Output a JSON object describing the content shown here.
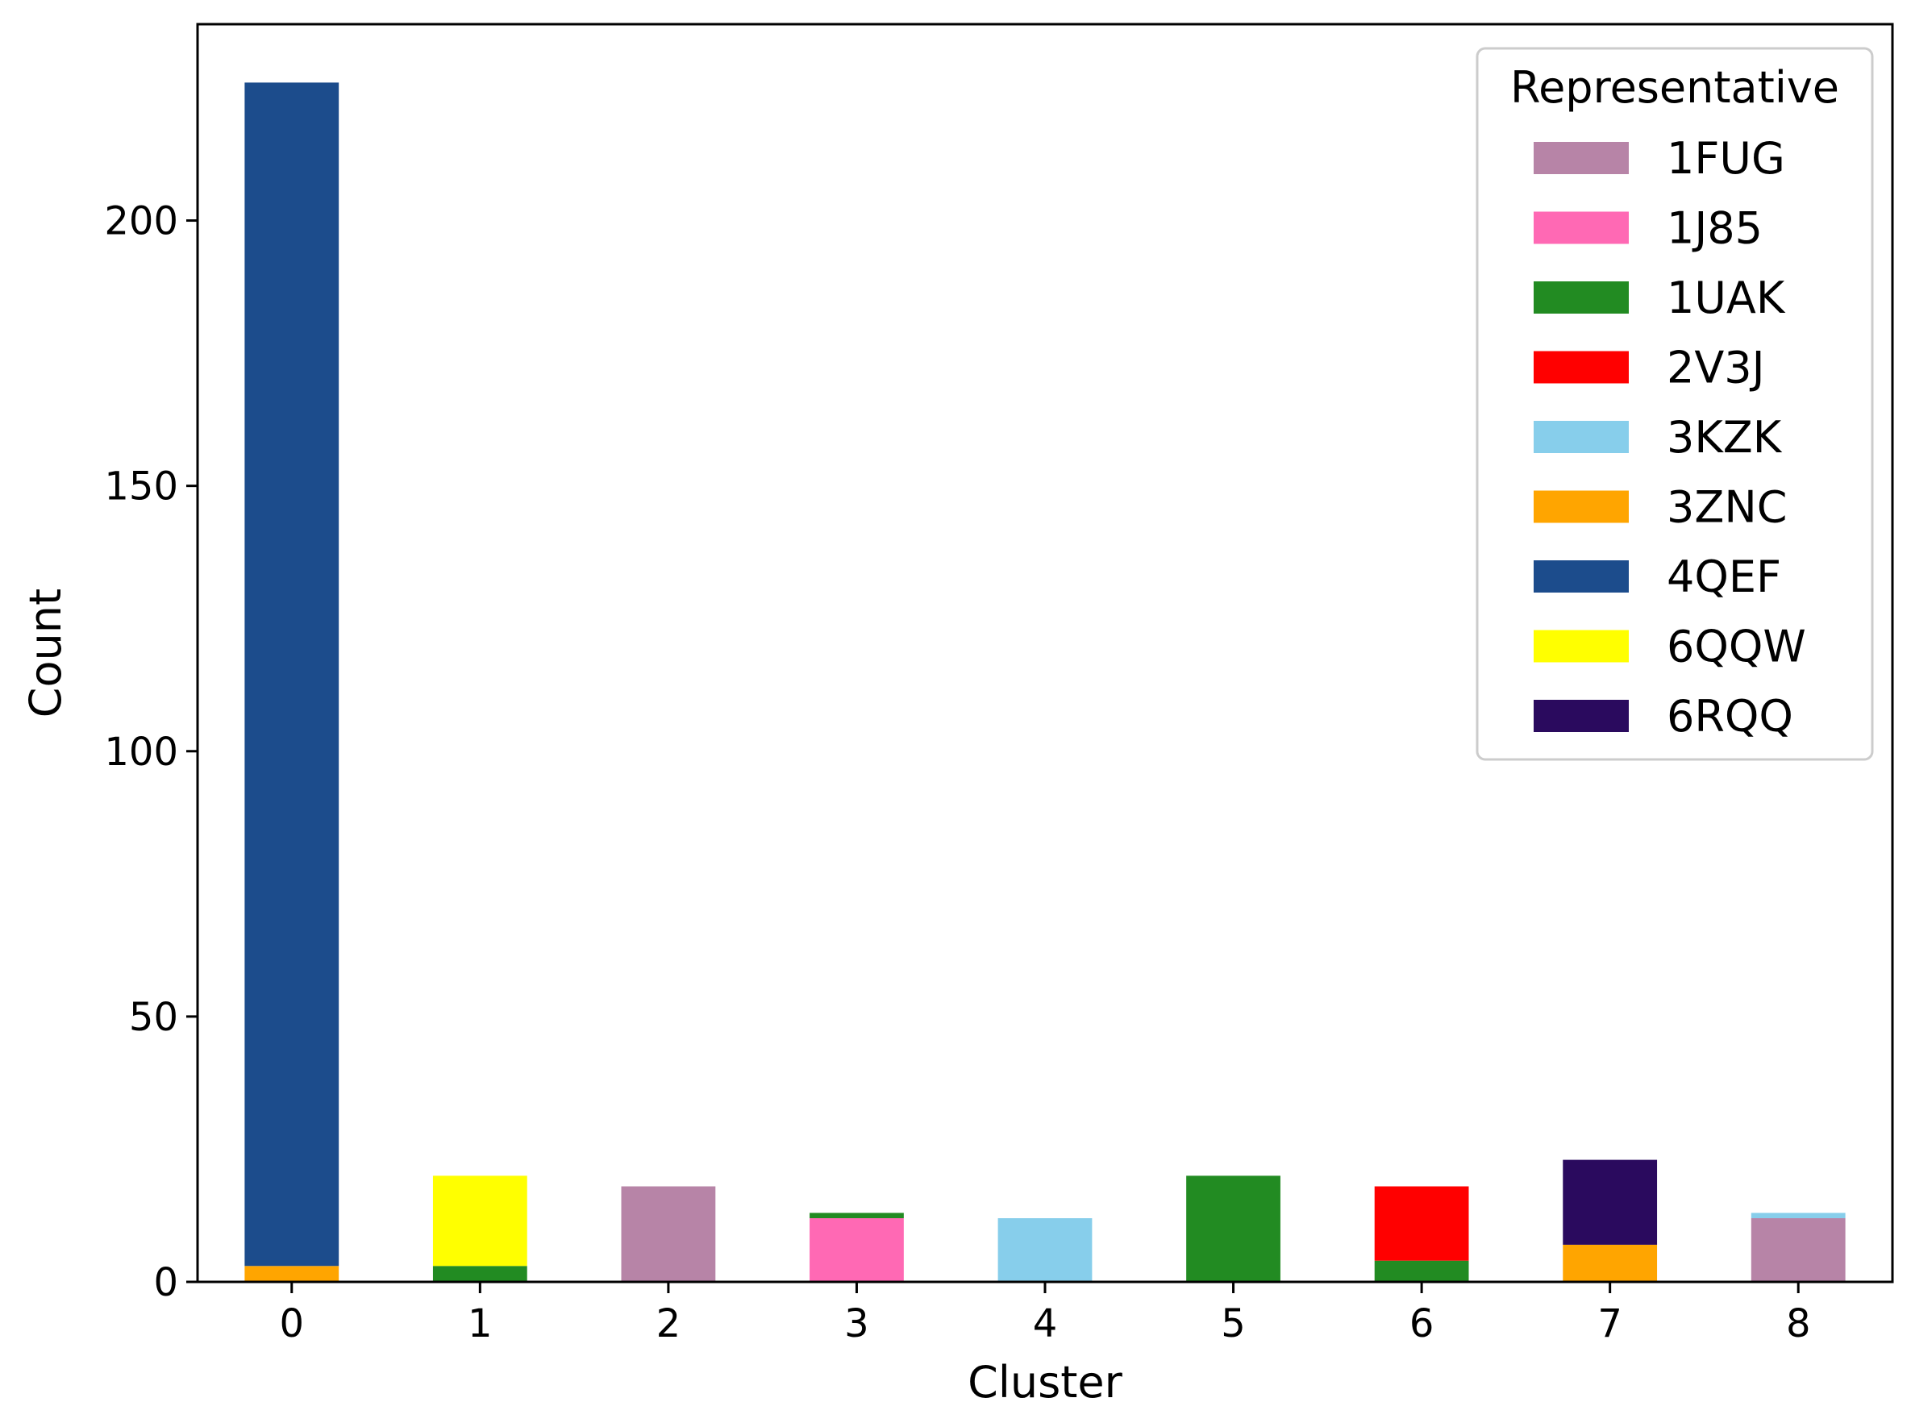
{
  "chart_data": {
    "type": "bar",
    "stacked": true,
    "categories": [
      "0",
      "1",
      "2",
      "3",
      "4",
      "5",
      "6",
      "7",
      "8"
    ],
    "xlabel": "Cluster",
    "ylabel": "Count",
    "ylim": [
      0,
      237
    ],
    "yticks": [
      0,
      50,
      100,
      150,
      200
    ],
    "grid": false,
    "legend": {
      "title": "Representative",
      "placement": "top-right"
    },
    "series": [
      {
        "name": "1FUG",
        "color": "#b784a7",
        "values": [
          0,
          0,
          18,
          0,
          0,
          0,
          0,
          0,
          12
        ]
      },
      {
        "name": "1J85",
        "color": "#ff69b4",
        "values": [
          0,
          0,
          0,
          12,
          0,
          0,
          0,
          0,
          0
        ]
      },
      {
        "name": "1UAK",
        "color": "#228b22",
        "values": [
          0,
          3,
          0,
          1,
          0,
          20,
          4,
          0,
          0
        ]
      },
      {
        "name": "2V3J",
        "color": "#ff0000",
        "values": [
          0,
          0,
          0,
          0,
          0,
          0,
          14,
          0,
          0
        ]
      },
      {
        "name": "3KZK",
        "color": "#87ceeb",
        "values": [
          0,
          0,
          0,
          0,
          12,
          0,
          0,
          0,
          1
        ]
      },
      {
        "name": "3ZNC",
        "color": "#ffa500",
        "values": [
          3,
          0,
          0,
          0,
          0,
          0,
          0,
          7,
          0
        ]
      },
      {
        "name": "4QEF",
        "color": "#1c4c8c",
        "values": [
          223,
          0,
          0,
          0,
          0,
          0,
          0,
          0,
          0
        ]
      },
      {
        "name": "6QQW",
        "color": "#ffff00",
        "values": [
          0,
          17,
          0,
          0,
          0,
          0,
          0,
          0,
          0
        ]
      },
      {
        "name": "6RQQ",
        "color": "#2a0a5e",
        "values": [
          0,
          0,
          0,
          0,
          0,
          0,
          0,
          16,
          0
        ]
      }
    ]
  }
}
